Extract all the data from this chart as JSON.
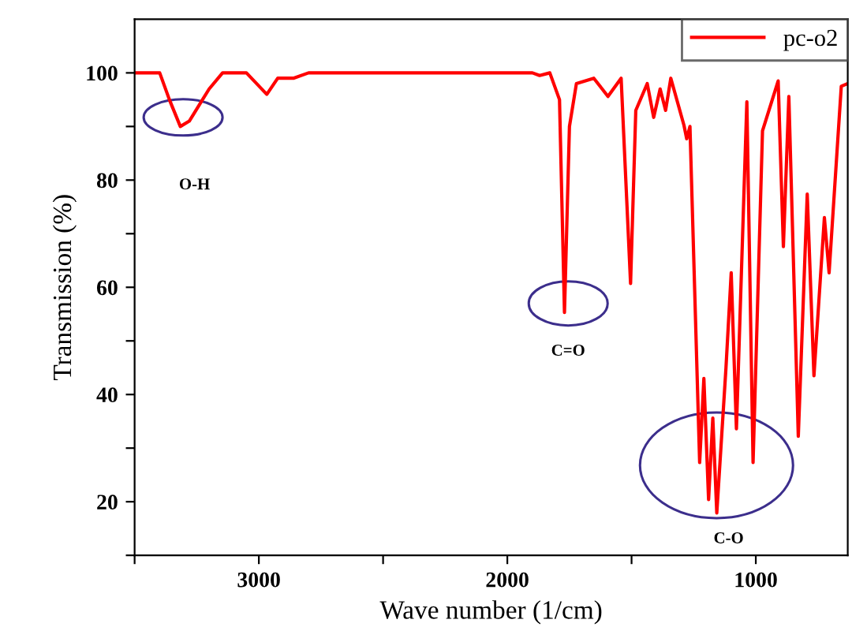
{
  "chart_data": {
    "type": "line",
    "xlabel": "Wave number (1/cm)",
    "ylabel": "Transmission (%)",
    "xlim": [
      3500,
      630
    ],
    "xticks": [
      {
        "value": 3500,
        "label": null
      },
      3000,
      {
        "value": 2500,
        "label": null
      },
      2000,
      {
        "value": 1500,
        "label": null
      },
      1000
    ],
    "ylim": [
      10,
      110
    ],
    "yticks": [
      {
        "value": 10,
        "label": null
      },
      20,
      {
        "value": 30,
        "label": null
      },
      40,
      {
        "value": 50,
        "label": null
      },
      60,
      {
        "value": 70,
        "label": null
      },
      80,
      {
        "value": 90,
        "label": null
      },
      100
    ],
    "grid": false,
    "legend": "top right",
    "marker": "none",
    "series": [
      {
        "name": "pc-o2",
        "color": "#ff0000",
        "x": [
          3500,
          3399,
          3360,
          3316,
          3280,
          3200,
          3146,
          3050,
          2968,
          2924,
          2861,
          2800,
          2400,
          1899,
          1870,
          1829,
          1790,
          1770,
          1750,
          1722,
          1652,
          1595,
          1542,
          1504,
          1483,
          1437,
          1411,
          1385,
          1363,
          1342,
          1289,
          1278,
          1265,
          1226,
          1209,
          1190,
          1173,
          1157,
          1120,
          1099,
          1078,
          1036,
          1011,
          973,
          910,
          889,
          867,
          829,
          793,
          766,
          724,
          705,
          656,
          630
        ],
        "values": [
          100,
          100,
          95,
          90,
          91,
          97,
          100,
          100,
          96,
          99,
          99,
          100,
          100,
          100,
          99.5,
          100,
          95,
          55.3,
          90,
          98,
          99,
          95.6,
          99,
          60.7,
          93,
          98,
          91.7,
          97,
          93,
          99,
          90.2,
          87.7,
          90,
          27.3,
          43,
          20.4,
          35.6,
          17.9,
          45,
          62.7,
          33.6,
          94.6,
          27.3,
          89.2,
          98.5,
          67.6,
          95.6,
          32.2,
          77.4,
          43.5,
          73,
          62.7,
          97.5,
          98
        ]
      }
    ],
    "annotations": [
      "O-H",
      "C=O",
      "C-O"
    ]
  }
}
